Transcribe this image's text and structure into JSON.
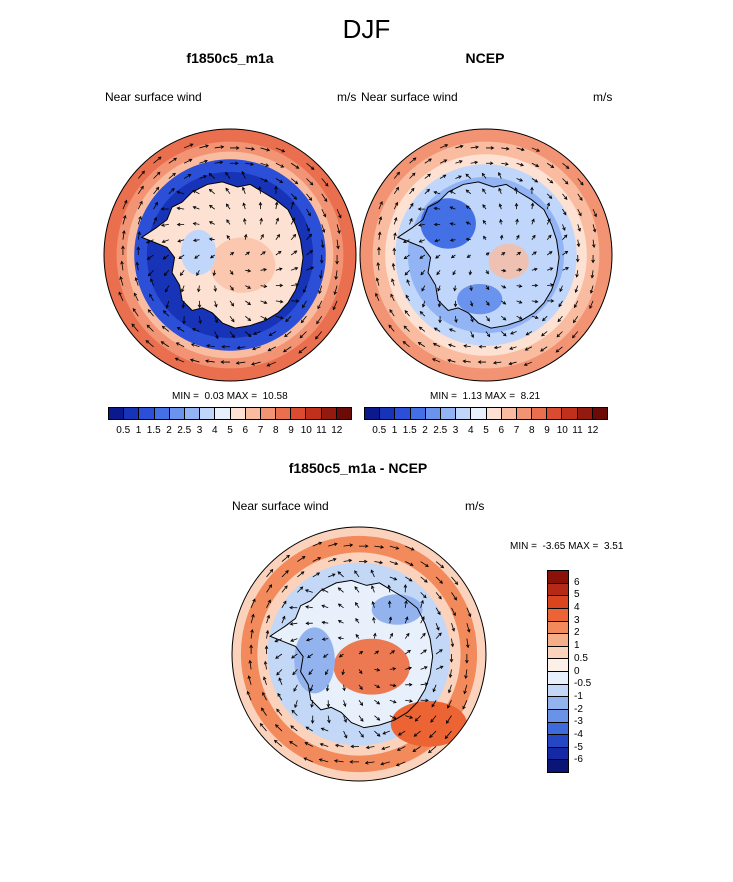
{
  "title": "DJF",
  "chart_data": [
    {
      "type": "heatmap",
      "subtype": "polar-stereographic vector wind map",
      "title": "f1850c5_m1a",
      "left_label": "Near surface wind",
      "right_label": "m/s",
      "min_label": "MIN =",
      "min": "0.03",
      "max_label": "MAX =",
      "max": "10.58",
      "levels": [
        "0.5",
        "1",
        "1.5",
        "2",
        "2.5",
        "3",
        "4",
        "5",
        "6",
        "7",
        "8",
        "9",
        "10",
        "11",
        "12"
      ],
      "colors": [
        "#0a1a8c",
        "#1733b8",
        "#2b4fd6",
        "#4470e6",
        "#6a93ee",
        "#92b4f4",
        "#c0d6fa",
        "#e8f0fc",
        "#fde1d2",
        "#f9bca0",
        "#f29474",
        "#e96f4e",
        "#da4b2f",
        "#c1301c",
        "#941a10",
        "#6b0a06"
      ],
      "pattern": "model"
    },
    {
      "type": "heatmap",
      "subtype": "polar-stereographic vector wind map",
      "title": "NCEP",
      "left_label": "Near surface wind",
      "right_label": "m/s",
      "min_label": "MIN =",
      "min": "1.13",
      "max_label": "MAX =",
      "max": "8.21",
      "levels": [
        "0.5",
        "1",
        "1.5",
        "2",
        "2.5",
        "3",
        "4",
        "5",
        "6",
        "7",
        "8",
        "9",
        "10",
        "11",
        "12"
      ],
      "colors": [
        "#0a1a8c",
        "#1733b8",
        "#2b4fd6",
        "#4470e6",
        "#6a93ee",
        "#92b4f4",
        "#c0d6fa",
        "#e8f0fc",
        "#fde1d2",
        "#f9bca0",
        "#f29474",
        "#e96f4e",
        "#da4b2f",
        "#c1301c",
        "#941a10",
        "#6b0a06"
      ],
      "pattern": "obs"
    },
    {
      "type": "heatmap",
      "subtype": "polar-stereographic vector wind difference map",
      "title": "f1850c5_m1a - NCEP",
      "left_label": "Near surface wind",
      "right_label": "m/s",
      "min_label": "MIN =",
      "min": "-3.65",
      "max_label": "MAX =",
      "max": "3.51",
      "levels": [
        "6",
        "5",
        "4",
        "3",
        "2",
        "1",
        "0.5",
        "0",
        "-0.5",
        "-1",
        "-2",
        "-3",
        "-4",
        "-5",
        "-6"
      ],
      "colors": [
        "#8a1208",
        "#b52a17",
        "#d8451f",
        "#ec6434",
        "#f28a5c",
        "#f6ae89",
        "#fbd2bb",
        "#fdf0e8",
        "#e8f0fb",
        "#c3d7f6",
        "#93b3ee",
        "#6a92e6",
        "#3f6ad9",
        "#2547c4",
        "#1529a4",
        "#091675"
      ],
      "pattern": "diff"
    }
  ]
}
